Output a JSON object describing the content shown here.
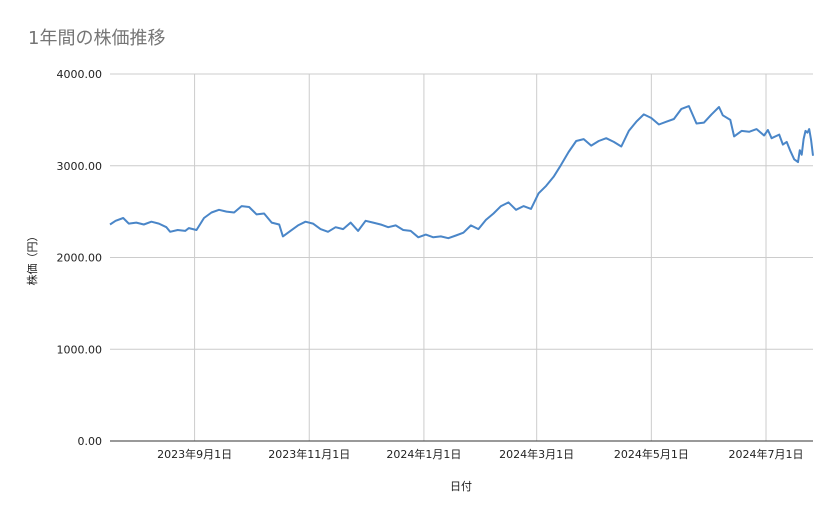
{
  "chart_data": {
    "type": "line",
    "title": "1年間の株価推移",
    "xlabel": "日付",
    "ylabel": "株価（円）",
    "ylim": [
      0,
      4000
    ],
    "grid": true,
    "yticks": [
      "0.00",
      "1000.00",
      "2000.00",
      "3000.00",
      "4000.00"
    ],
    "xticks": [
      {
        "date": "2023-09-01",
        "label": "2023年9月1日"
      },
      {
        "date": "2023-11-01",
        "label": "2023年11月1日"
      },
      {
        "date": "2024-01-01",
        "label": "2024年1月1日"
      },
      {
        "date": "2024-03-01",
        "label": "2024年3月1日"
      },
      {
        "date": "2024-05-01",
        "label": "2024年5月1日"
      },
      {
        "date": "2024-07-01",
        "label": "2024年7月1日"
      }
    ],
    "x_range": [
      "2023-07-18",
      "2024-07-26"
    ],
    "series": [
      {
        "color": "#4a86c8",
        "points": [
          [
            "2023-07-18",
            2360
          ],
          [
            "2023-07-21",
            2400
          ],
          [
            "2023-07-25",
            2430
          ],
          [
            "2023-07-28",
            2370
          ],
          [
            "2023-08-01",
            2380
          ],
          [
            "2023-08-05",
            2360
          ],
          [
            "2023-08-09",
            2390
          ],
          [
            "2023-08-13",
            2370
          ],
          [
            "2023-08-17",
            2330
          ],
          [
            "2023-08-19",
            2280
          ],
          [
            "2023-08-23",
            2300
          ],
          [
            "2023-08-27",
            2290
          ],
          [
            "2023-08-29",
            2320
          ],
          [
            "2023-09-02",
            2300
          ],
          [
            "2023-09-06",
            2430
          ],
          [
            "2023-09-10",
            2490
          ],
          [
            "2023-09-14",
            2520
          ],
          [
            "2023-09-18",
            2500
          ],
          [
            "2023-09-22",
            2490
          ],
          [
            "2023-09-26",
            2560
          ],
          [
            "2023-09-30",
            2550
          ],
          [
            "2023-10-04",
            2470
          ],
          [
            "2023-10-08",
            2480
          ],
          [
            "2023-10-12",
            2380
          ],
          [
            "2023-10-16",
            2360
          ],
          [
            "2023-10-18",
            2230
          ],
          [
            "2023-10-22",
            2290
          ],
          [
            "2023-10-26",
            2350
          ],
          [
            "2023-10-30",
            2390
          ],
          [
            "2023-11-03",
            2370
          ],
          [
            "2023-11-07",
            2310
          ],
          [
            "2023-11-11",
            2280
          ],
          [
            "2023-11-15",
            2330
          ],
          [
            "2023-11-19",
            2310
          ],
          [
            "2023-11-23",
            2380
          ],
          [
            "2023-11-27",
            2290
          ],
          [
            "2023-12-01",
            2400
          ],
          [
            "2023-12-05",
            2380
          ],
          [
            "2023-12-09",
            2360
          ],
          [
            "2023-12-13",
            2330
          ],
          [
            "2023-12-17",
            2350
          ],
          [
            "2023-12-21",
            2300
          ],
          [
            "2023-12-25",
            2290
          ],
          [
            "2023-12-29",
            2220
          ],
          [
            "2024-01-02",
            2250
          ],
          [
            "2024-01-06",
            2220
          ],
          [
            "2024-01-10",
            2230
          ],
          [
            "2024-01-14",
            2210
          ],
          [
            "2024-01-18",
            2240
          ],
          [
            "2024-01-22",
            2270
          ],
          [
            "2024-01-26",
            2350
          ],
          [
            "2024-01-30",
            2310
          ],
          [
            "2024-02-03",
            2410
          ],
          [
            "2024-02-07",
            2480
          ],
          [
            "2024-02-11",
            2560
          ],
          [
            "2024-02-15",
            2600
          ],
          [
            "2024-02-19",
            2520
          ],
          [
            "2024-02-23",
            2560
          ],
          [
            "2024-02-27",
            2530
          ],
          [
            "2024-03-02",
            2700
          ],
          [
            "2024-03-06",
            2780
          ],
          [
            "2024-03-10",
            2880
          ],
          [
            "2024-03-14",
            3010
          ],
          [
            "2024-03-18",
            3150
          ],
          [
            "2024-03-22",
            3270
          ],
          [
            "2024-03-26",
            3290
          ],
          [
            "2024-03-30",
            3220
          ],
          [
            "2024-04-03",
            3270
          ],
          [
            "2024-04-07",
            3300
          ],
          [
            "2024-04-11",
            3260
          ],
          [
            "2024-04-15",
            3210
          ],
          [
            "2024-04-19",
            3380
          ],
          [
            "2024-04-23",
            3480
          ],
          [
            "2024-04-27",
            3560
          ],
          [
            "2024-05-01",
            3520
          ],
          [
            "2024-05-05",
            3450
          ],
          [
            "2024-05-09",
            3480
          ],
          [
            "2024-05-13",
            3510
          ],
          [
            "2024-05-17",
            3620
          ],
          [
            "2024-05-21",
            3650
          ],
          [
            "2024-05-25",
            3460
          ],
          [
            "2024-05-29",
            3470
          ],
          [
            "2024-06-02",
            3560
          ],
          [
            "2024-06-06",
            3640
          ],
          [
            "2024-06-08",
            3550
          ],
          [
            "2024-06-12",
            3500
          ],
          [
            "2024-06-14",
            3320
          ],
          [
            "2024-06-18",
            3380
          ],
          [
            "2024-06-22",
            3370
          ],
          [
            "2024-06-26",
            3400
          ],
          [
            "2024-06-30",
            3330
          ],
          [
            "2024-07-02",
            3390
          ],
          [
            "2024-07-04",
            3300
          ],
          [
            "2024-07-08",
            3340
          ],
          [
            "2024-07-10",
            3230
          ],
          [
            "2024-07-12",
            3260
          ],
          [
            "2024-07-14",
            3160
          ],
          [
            "2024-07-16",
            3070
          ],
          [
            "2024-07-18",
            3040
          ],
          [
            "2024-07-19",
            3170
          ],
          [
            "2024-07-20",
            3120
          ],
          [
            "2024-07-21",
            3290
          ],
          [
            "2024-07-22",
            3380
          ],
          [
            "2024-07-23",
            3360
          ],
          [
            "2024-07-24",
            3400
          ],
          [
            "2024-07-25",
            3280
          ],
          [
            "2024-07-26",
            3110
          ]
        ]
      }
    ]
  }
}
